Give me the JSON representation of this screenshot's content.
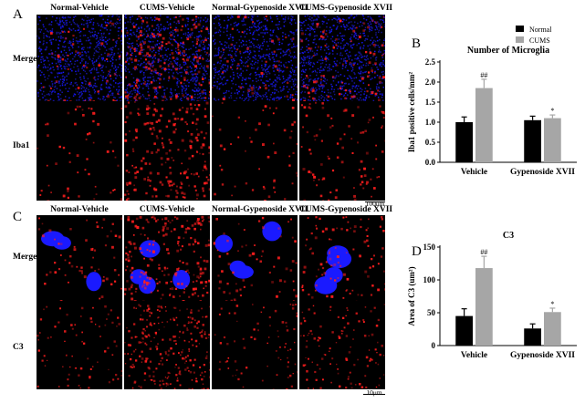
{
  "panel_labels": [
    "A",
    "B",
    "C",
    "D"
  ],
  "columns": [
    "Normal-Vehicle",
    "CUMS-Vehicle",
    "Normal-Gypenoside XVII",
    "CUMS-Gypenoside XVII"
  ],
  "rows_top": [
    "Merge",
    "Iba1"
  ],
  "rows_bottom": [
    "Merge",
    "C3"
  ],
  "scale_top": "100um",
  "scale_bottom": "10μm",
  "colors": {
    "normal": "#000000",
    "cums": "#a6a6a6",
    "red": "#ff1a1a",
    "blue": "#1a1aff"
  },
  "chart_data": [
    {
      "type": "bar",
      "title": "Number of Microglia",
      "ylabel": "Iba1 positive cells/mm²",
      "categories": [
        "Vehicle",
        "Gypenoside XVII"
      ],
      "series": [
        {
          "name": "Normal",
          "values": [
            1.0,
            1.05
          ],
          "errors": [
            0.13,
            0.1
          ]
        },
        {
          "name": "CUMS",
          "values": [
            1.85,
            1.1
          ],
          "errors": [
            0.22,
            0.08
          ]
        }
      ],
      "annotations": [
        {
          "series": 1,
          "category": 0,
          "text": "##"
        },
        {
          "series": 1,
          "category": 1,
          "text": "*"
        }
      ],
      "ylim": [
        0,
        2.5
      ],
      "yticks": [
        "0.0",
        "0.5",
        "1.0",
        "1.5",
        "2.0",
        "2.5"
      ],
      "legend": "top-right"
    },
    {
      "type": "bar",
      "title": "C3",
      "ylabel": "Area of C3 (um²)",
      "categories": [
        "Vehicle",
        "Gypenoside XVII"
      ],
      "series": [
        {
          "name": "Normal",
          "values": [
            45,
            26
          ],
          "errors": [
            11,
            7
          ]
        },
        {
          "name": "CUMS",
          "values": [
            118,
            51
          ],
          "errors": [
            18,
            6
          ]
        }
      ],
      "annotations": [
        {
          "series": 1,
          "category": 0,
          "text": "##"
        },
        {
          "series": 1,
          "category": 1,
          "text": "*"
        }
      ],
      "ylim": [
        0,
        150
      ],
      "yticks": [
        "0",
        "50",
        "100",
        "150"
      ]
    }
  ]
}
